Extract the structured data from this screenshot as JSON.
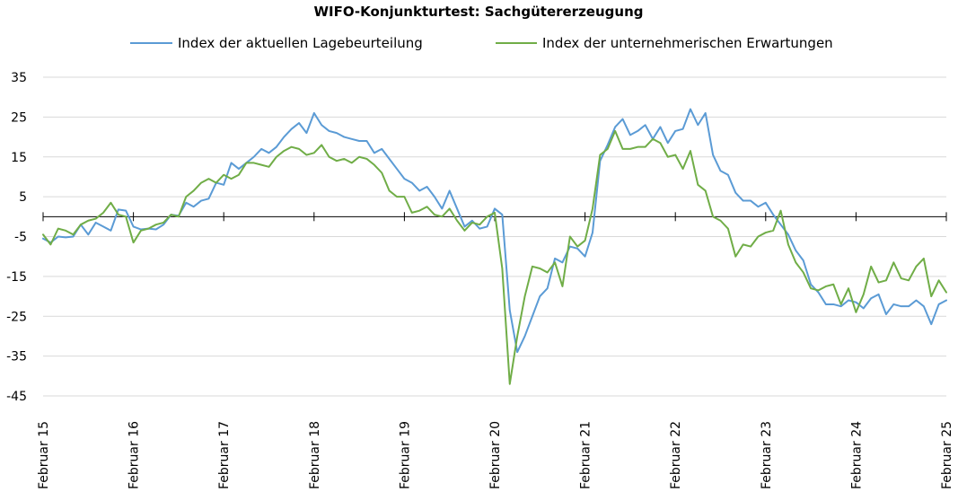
{
  "chart_data": {
    "type": "line",
    "title": "WIFO-Konjunkturtest: Sachgütererzeugung",
    "xlabel": "",
    "ylabel": "",
    "ylim": [
      -45,
      35
    ],
    "yticks": [
      35,
      25,
      15,
      5,
      -5,
      -15,
      -25,
      -35,
      -45
    ],
    "xticks": [
      "Februar 15",
      "Februar 16",
      "Februar 17",
      "Februar 18",
      "Februar 19",
      "Februar 20",
      "Februar 21",
      "Februar 22",
      "Februar 23",
      "Februar 24",
      "Februar 25"
    ],
    "x_start": "2015-02",
    "grid": "horizontal",
    "legend": "top-center",
    "series": [
      {
        "name": "Index der aktuellen Lagebeurteilung",
        "color": "#5B9BD5",
        "values": [
          -5.5,
          -6.5,
          -5.0,
          -5.2,
          -5.0,
          -2.0,
          -4.5,
          -1.5,
          -2.5,
          -3.5,
          1.8,
          1.5,
          -2.5,
          -3.2,
          -3.0,
          -3.2,
          -2.0,
          0.5,
          0.2,
          3.5,
          2.5,
          4.0,
          4.5,
          8.5,
          8.0,
          13.5,
          12.0,
          13.5,
          15.0,
          17.0,
          16.0,
          17.5,
          20.0,
          22.0,
          23.5,
          21.0,
          26.0,
          23.0,
          21.5,
          21.0,
          20.0,
          19.5,
          19.0,
          19.0,
          16.0,
          17.0,
          14.5,
          12.0,
          9.5,
          8.5,
          6.5,
          7.5,
          5.0,
          2.0,
          6.5,
          2.0,
          -2.5,
          -1.0,
          -3.0,
          -2.5,
          2.0,
          0.5,
          -23.5,
          -34.0,
          -30.0,
          -25.0,
          -20.0,
          -18.0,
          -10.5,
          -11.5,
          -7.5,
          -8.0,
          -10.0,
          -4.0,
          14.0,
          18.0,
          22.5,
          24.5,
          20.5,
          21.5,
          23.0,
          19.5,
          22.5,
          18.5,
          21.5,
          22.0,
          27.0,
          23.0,
          26.0,
          15.5,
          11.5,
          10.5,
          6.0,
          4.0,
          4.0,
          2.5,
          3.5,
          0.5,
          -2.0,
          -4.5,
          -8.5,
          -11.0,
          -17.0,
          -19.0,
          -22.0,
          -22.0,
          -22.5,
          -21.0,
          -21.5,
          -23.0,
          -20.5,
          -19.5,
          -24.5,
          -22.0,
          -22.5,
          -22.5,
          -21.0,
          -22.5,
          -27.0,
          -22.0,
          -21.0
        ]
      },
      {
        "name": "Index der unternehmerischen Erwartungen",
        "color": "#70AD47",
        "values": [
          -4.5,
          -7.0,
          -3.0,
          -3.5,
          -4.5,
          -2.0,
          -1.0,
          -0.5,
          1.0,
          3.5,
          0.5,
          0.0,
          -6.5,
          -3.5,
          -3.0,
          -2.0,
          -1.5,
          0.5,
          0.0,
          5.0,
          6.5,
          8.5,
          9.5,
          8.5,
          10.5,
          9.5,
          10.5,
          13.5,
          13.5,
          13.0,
          12.5,
          15.0,
          16.5,
          17.5,
          17.0,
          15.5,
          16.0,
          18.0,
          15.0,
          14.0,
          14.5,
          13.5,
          15.0,
          14.5,
          13.0,
          11.0,
          6.5,
          5.0,
          5.0,
          1.0,
          1.5,
          2.5,
          0.5,
          0.0,
          2.0,
          -1.0,
          -3.5,
          -1.5,
          -2.0,
          0.0,
          1.0,
          -13.0,
          -42.0,
          -30.0,
          -20.0,
          -12.5,
          -13.0,
          -14.0,
          -11.5,
          -17.5,
          -5.0,
          -7.5,
          -6.0,
          2.0,
          15.5,
          17.0,
          21.5,
          17.0,
          17.0,
          17.5,
          17.5,
          19.5,
          18.5,
          15.0,
          15.5,
          12.0,
          16.5,
          8.0,
          6.5,
          0.0,
          -1.0,
          -3.0,
          -10.0,
          -7.0,
          -7.5,
          -5.0,
          -4.0,
          -3.5,
          1.5,
          -7.0,
          -11.5,
          -14.0,
          -18.0,
          -18.5,
          -17.5,
          -17.0,
          -22.0,
          -18.0,
          -24.0,
          -19.5,
          -12.5,
          -16.5,
          -16.0,
          -11.5,
          -15.5,
          -16.0,
          -12.5,
          -10.5,
          -20.0,
          -16.0,
          -19.0
        ]
      }
    ]
  }
}
